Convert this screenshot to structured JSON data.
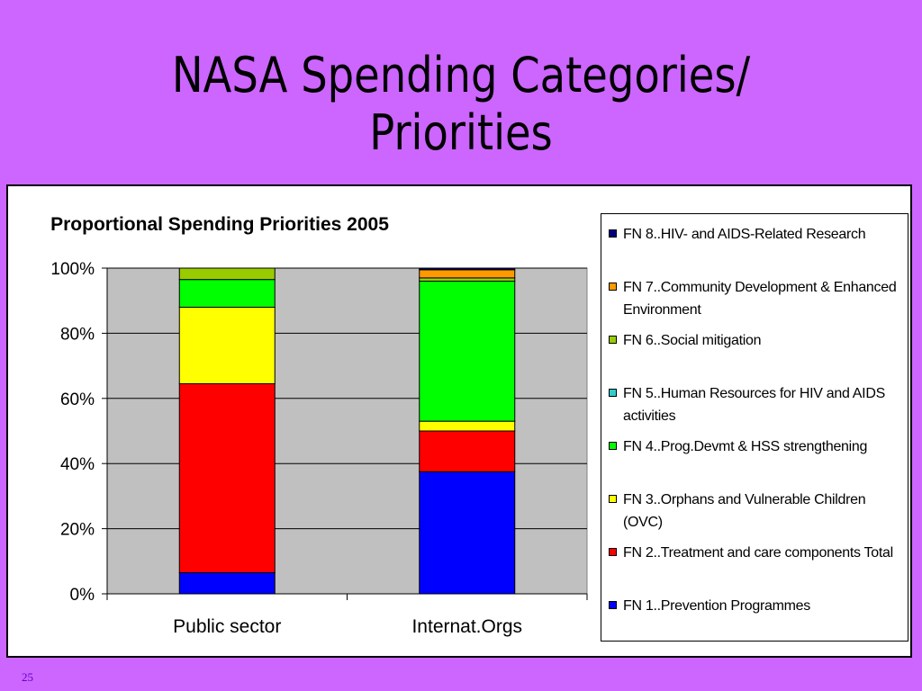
{
  "slide": {
    "title_line1": "NASA Spending Categories/",
    "title_line2": "Priorities",
    "page_number": "25"
  },
  "chart_data": {
    "type": "bar",
    "stacked": true,
    "percent": true,
    "title": "Proportional Spending Priorities 2005",
    "xlabel": "",
    "ylabel": "",
    "categories": [
      "Public sector",
      "Internat.Orgs"
    ],
    "ylim": [
      0,
      100
    ],
    "yticks": [
      "0%",
      "20%",
      "40%",
      "60%",
      "80%",
      "100%"
    ],
    "ytick_values": [
      0,
      20,
      40,
      60,
      80,
      100
    ],
    "grid": true,
    "legend_placement": "right",
    "series": [
      {
        "name": "FN 1..Prevention Programmes",
        "color": "#0000ff",
        "values": [
          6.5,
          37.5
        ]
      },
      {
        "name": "FN 2..Treatment and care components Total",
        "color": "#ff0000",
        "values": [
          58,
          12.5
        ]
      },
      {
        "name": "FN 3..Orphans and Vulnerable Children (OVC)",
        "color": "#ffff00",
        "values": [
          23.5,
          3
        ]
      },
      {
        "name": "FN 4..Prog.Devmt & HSS strengthening",
        "color": "#00ff00",
        "values": [
          8.5,
          43
        ]
      },
      {
        "name": "FN 5..Human Resources for HIV and AIDS activities",
        "color": "#33cccc",
        "values": [
          0,
          0
        ]
      },
      {
        "name": "FN 6..Social mitigation",
        "color": "#99cc00",
        "values": [
          3.5,
          1
        ]
      },
      {
        "name": "FN 7..Community Development & Enhanced Environment",
        "color": "#ff9900",
        "values": [
          0,
          2.5
        ]
      },
      {
        "name": "FN 8..HIV- and AIDS-Related Research",
        "color": "#000080",
        "values": [
          0,
          0.5
        ]
      }
    ]
  }
}
